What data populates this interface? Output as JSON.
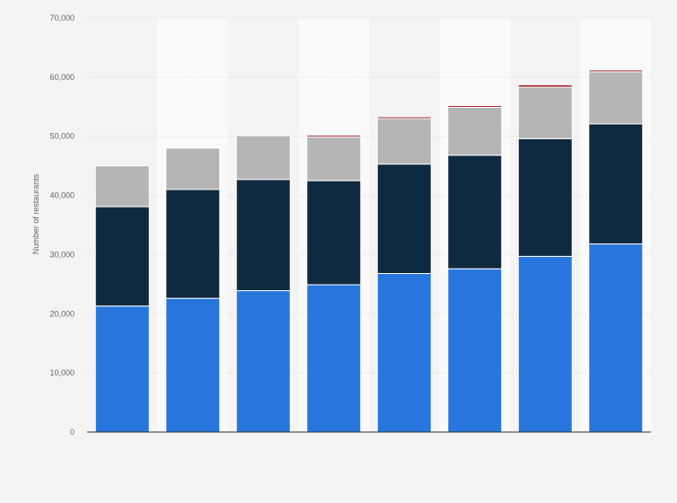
{
  "chart_data": {
    "type": "bar",
    "stacked": true,
    "title": "",
    "xlabel": "",
    "ylabel": "Number of restaurants",
    "ylim": [
      0,
      70000
    ],
    "yticks": [
      0,
      10000,
      20000,
      30000,
      40000,
      50000,
      60000,
      70000
    ],
    "ytick_labels": [
      "0",
      "10,000",
      "20,000",
      "30,000",
      "40,000",
      "50,000",
      "60,000",
      "70,000"
    ],
    "grid": true,
    "legend": "none",
    "categories": [
      "",
      "",
      "",
      "",
      "",
      "",
      "",
      ""
    ],
    "series": [
      {
        "color": "#2876dd",
        "values": [
          21300,
          22600,
          23900,
          24900,
          26800,
          27600,
          29700,
          31800
        ]
      },
      {
        "color": "#0f2a40",
        "values": [
          16800,
          18400,
          18800,
          17600,
          18500,
          19200,
          19900,
          20300
        ]
      },
      {
        "color": "#b5b5b5",
        "values": [
          6900,
          7000,
          7400,
          7400,
          7700,
          8100,
          8700,
          8800
        ]
      },
      {
        "color": "#a11f1f",
        "values": [
          0,
          0,
          0,
          300,
          300,
          300,
          400,
          300
        ]
      }
    ]
  }
}
